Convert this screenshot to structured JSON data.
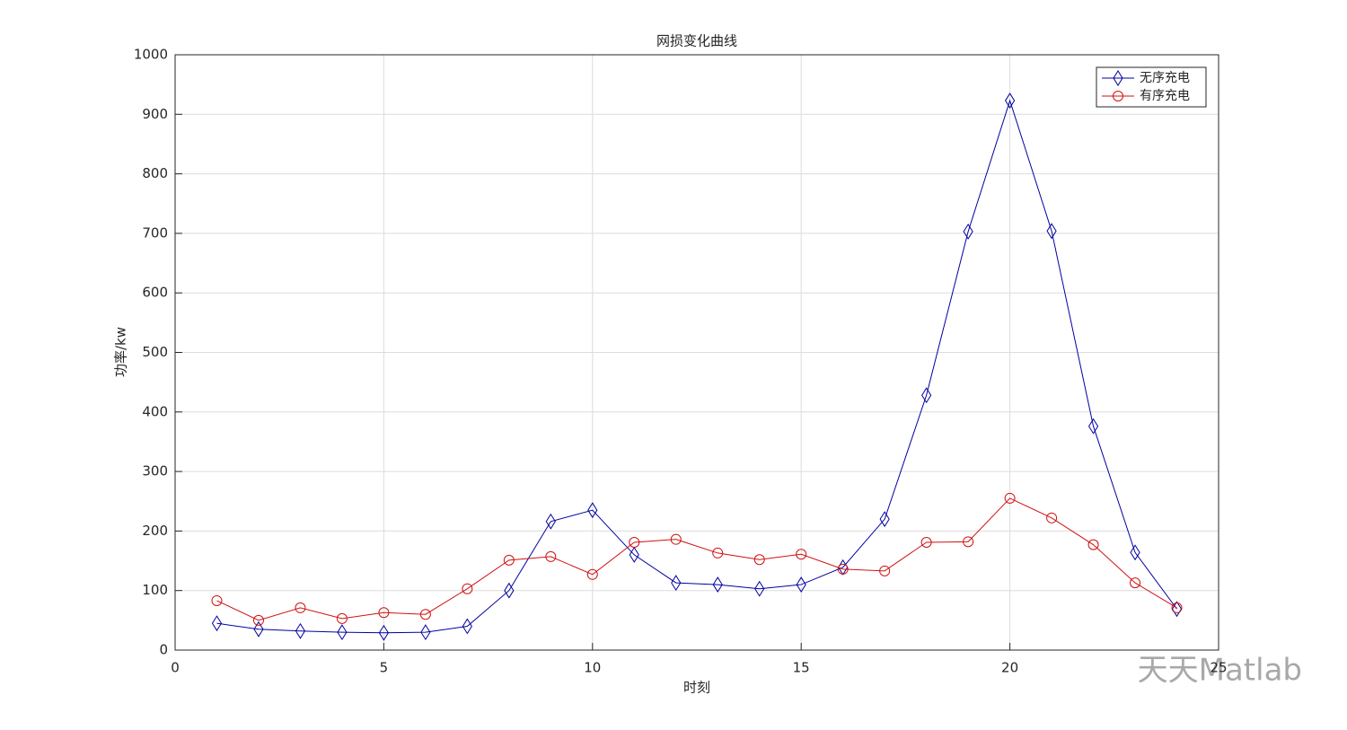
{
  "chart_data": {
    "type": "line",
    "title": "网损变化曲线",
    "xlabel": "时刻",
    "ylabel": "功率/kw",
    "x": [
      1,
      2,
      3,
      4,
      5,
      6,
      7,
      8,
      9,
      10,
      11,
      12,
      13,
      14,
      15,
      16,
      17,
      18,
      19,
      20,
      21,
      22,
      23,
      24
    ],
    "series": [
      {
        "name": "无序充电",
        "color": "#0000a0",
        "marker": "diamond",
        "values": [
          45,
          35,
          32,
          30,
          29,
          30,
          40,
          100,
          216,
          235,
          160,
          113,
          110,
          103,
          110,
          139,
          220,
          428,
          703,
          923,
          704,
          376,
          164,
          69
        ]
      },
      {
        "name": "有序充电",
        "color": "#d01010",
        "marker": "circle",
        "values": [
          83,
          50,
          71,
          53,
          63,
          60,
          103,
          151,
          157,
          127,
          181,
          186,
          163,
          152,
          161,
          136,
          133,
          181,
          182,
          255,
          222,
          177,
          113,
          71
        ]
      }
    ],
    "xlim": [
      0,
      25
    ],
    "xticks": [
      0,
      5,
      10,
      15,
      20,
      25
    ],
    "ylim": [
      0,
      1000
    ],
    "yticks": [
      0,
      100,
      200,
      300,
      400,
      500,
      600,
      700,
      800,
      900,
      1000
    ],
    "grid": true,
    "legend": "upper right"
  },
  "watermark": "天天Matlab"
}
